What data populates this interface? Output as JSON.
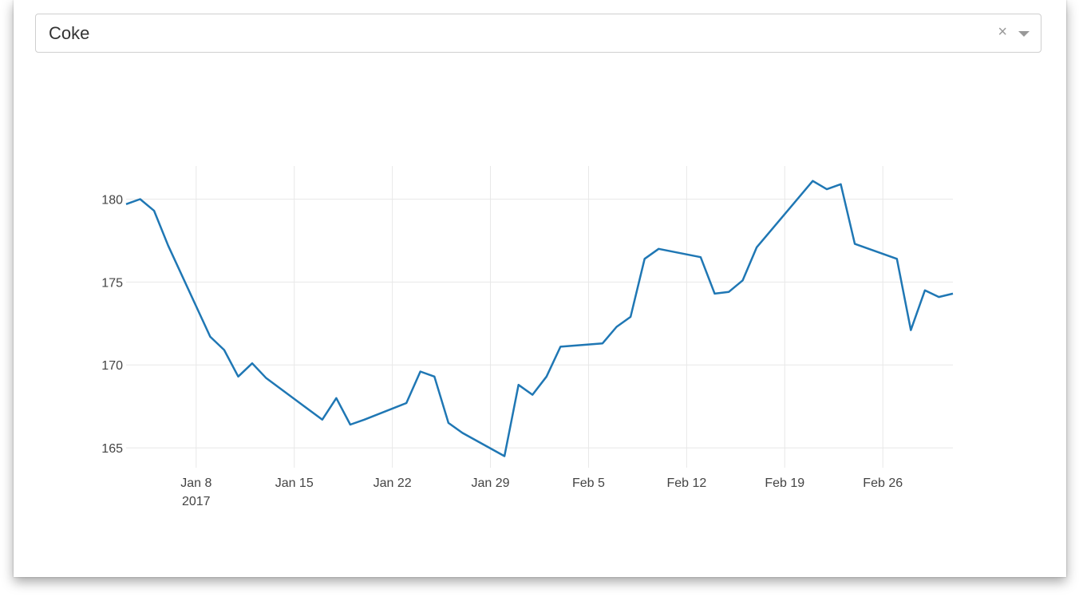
{
  "selector": {
    "value": "Coke",
    "clear_icon": "×",
    "icons": [
      "close-icon",
      "chevron-down-icon"
    ]
  },
  "chart_data": {
    "type": "line",
    "title": "",
    "xlabel": "",
    "ylabel": "",
    "line_color": "#1f77b4",
    "grid": true,
    "ylim": [
      163.8,
      182
    ],
    "y_ticks": [
      165,
      170,
      175,
      180
    ],
    "y_tick_labels": [
      "165",
      "170",
      "175",
      "180"
    ],
    "x_range": [
      "2017-01-03",
      "2017-03-03"
    ],
    "x_ticks": [
      "2017-01-08",
      "2017-01-15",
      "2017-01-22",
      "2017-01-29",
      "2017-02-05",
      "2017-02-12",
      "2017-02-19",
      "2017-02-26"
    ],
    "x_tick_labels": [
      "Jan 8",
      "Jan 15",
      "Jan 22",
      "Jan 29",
      "Feb 5",
      "Feb 12",
      "Feb 19",
      "Feb 26"
    ],
    "x_tick_sublabel": "2017",
    "series": [
      {
        "x": [
          "2017-01-03",
          "2017-01-04",
          "2017-01-05",
          "2017-01-06",
          "2017-01-09",
          "2017-01-10",
          "2017-01-11",
          "2017-01-12",
          "2017-01-13",
          "2017-01-17",
          "2017-01-18",
          "2017-01-19",
          "2017-01-20",
          "2017-01-23",
          "2017-01-24",
          "2017-01-25",
          "2017-01-26",
          "2017-01-27",
          "2017-01-30",
          "2017-01-31",
          "2017-02-01",
          "2017-02-02",
          "2017-02-03",
          "2017-02-06",
          "2017-02-07",
          "2017-02-08",
          "2017-02-09",
          "2017-02-10",
          "2017-02-13",
          "2017-02-14",
          "2017-02-15",
          "2017-02-16",
          "2017-02-17",
          "2017-02-21",
          "2017-02-22",
          "2017-02-23",
          "2017-02-24",
          "2017-02-27",
          "2017-02-28",
          "2017-03-01",
          "2017-03-02",
          "2017-03-03"
        ],
        "values": [
          179.7,
          180.0,
          179.3,
          177.2,
          171.7,
          170.9,
          169.3,
          170.1,
          169.2,
          166.7,
          168.0,
          166.4,
          166.7,
          167.7,
          169.6,
          169.3,
          166.5,
          165.9,
          164.5,
          168.8,
          168.2,
          169.3,
          171.1,
          171.3,
          172.3,
          172.9,
          176.4,
          177.0,
          176.5,
          174.3,
          174.4,
          175.1,
          177.1,
          181.1,
          180.6,
          180.9,
          177.3,
          176.4,
          172.1,
          174.5,
          174.1,
          174.3
        ]
      }
    ]
  }
}
